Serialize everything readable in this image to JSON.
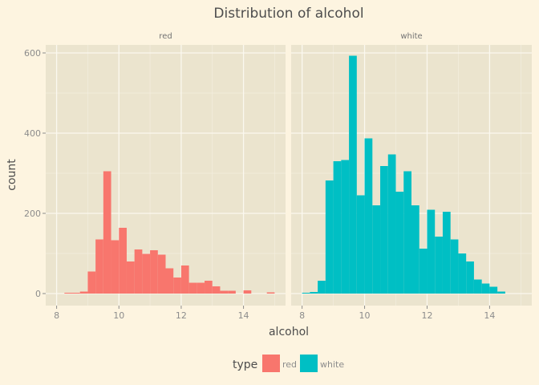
{
  "chart_data": {
    "type": "bar",
    "title": "Distribution of  alcohol",
    "xlabel": "alcohol",
    "ylabel": "count",
    "xlim": [
      7.65,
      15.35
    ],
    "ylim": [
      -30,
      620
    ],
    "x_ticks": [
      8,
      10,
      12,
      14
    ],
    "y_ticks": [
      0,
      200,
      400,
      600
    ],
    "bin_width": 0.25,
    "legend": {
      "title": "type",
      "position": "bottom"
    },
    "panels": [
      {
        "name": "red",
        "color": "#f8766d",
        "bins": [
          {
            "x": 8.375,
            "count": 2
          },
          {
            "x": 8.625,
            "count": 2
          },
          {
            "x": 8.875,
            "count": 5
          },
          {
            "x": 9.125,
            "count": 55
          },
          {
            "x": 9.375,
            "count": 135
          },
          {
            "x": 9.625,
            "count": 305
          },
          {
            "x": 9.875,
            "count": 133
          },
          {
            "x": 10.125,
            "count": 164
          },
          {
            "x": 10.375,
            "count": 80
          },
          {
            "x": 10.625,
            "count": 110
          },
          {
            "x": 10.875,
            "count": 99
          },
          {
            "x": 11.125,
            "count": 108
          },
          {
            "x": 11.375,
            "count": 97
          },
          {
            "x": 11.625,
            "count": 63
          },
          {
            "x": 11.875,
            "count": 40
          },
          {
            "x": 12.125,
            "count": 70
          },
          {
            "x": 12.375,
            "count": 27
          },
          {
            "x": 12.625,
            "count": 27
          },
          {
            "x": 12.875,
            "count": 32
          },
          {
            "x": 13.125,
            "count": 18
          },
          {
            "x": 13.375,
            "count": 7
          },
          {
            "x": 13.625,
            "count": 7
          },
          {
            "x": 14.125,
            "count": 8
          },
          {
            "x": 14.875,
            "count": 3
          }
        ]
      },
      {
        "name": "white",
        "color": "#00bfc4",
        "bins": [
          {
            "x": 8.125,
            "count": 2
          },
          {
            "x": 8.375,
            "count": 4
          },
          {
            "x": 8.625,
            "count": 32
          },
          {
            "x": 8.875,
            "count": 282
          },
          {
            "x": 9.125,
            "count": 330
          },
          {
            "x": 9.375,
            "count": 333
          },
          {
            "x": 9.625,
            "count": 593
          },
          {
            "x": 9.875,
            "count": 245
          },
          {
            "x": 10.125,
            "count": 387
          },
          {
            "x": 10.375,
            "count": 220
          },
          {
            "x": 10.625,
            "count": 318
          },
          {
            "x": 10.875,
            "count": 347
          },
          {
            "x": 11.125,
            "count": 254
          },
          {
            "x": 11.375,
            "count": 305
          },
          {
            "x": 11.625,
            "count": 220
          },
          {
            "x": 11.875,
            "count": 112
          },
          {
            "x": 12.125,
            "count": 209
          },
          {
            "x": 12.375,
            "count": 142
          },
          {
            "x": 12.625,
            "count": 204
          },
          {
            "x": 12.875,
            "count": 135
          },
          {
            "x": 13.125,
            "count": 100
          },
          {
            "x": 13.375,
            "count": 80
          },
          {
            "x": 13.625,
            "count": 35
          },
          {
            "x": 13.875,
            "count": 25
          },
          {
            "x": 14.125,
            "count": 17
          },
          {
            "x": 14.375,
            "count": 5
          }
        ]
      }
    ]
  }
}
